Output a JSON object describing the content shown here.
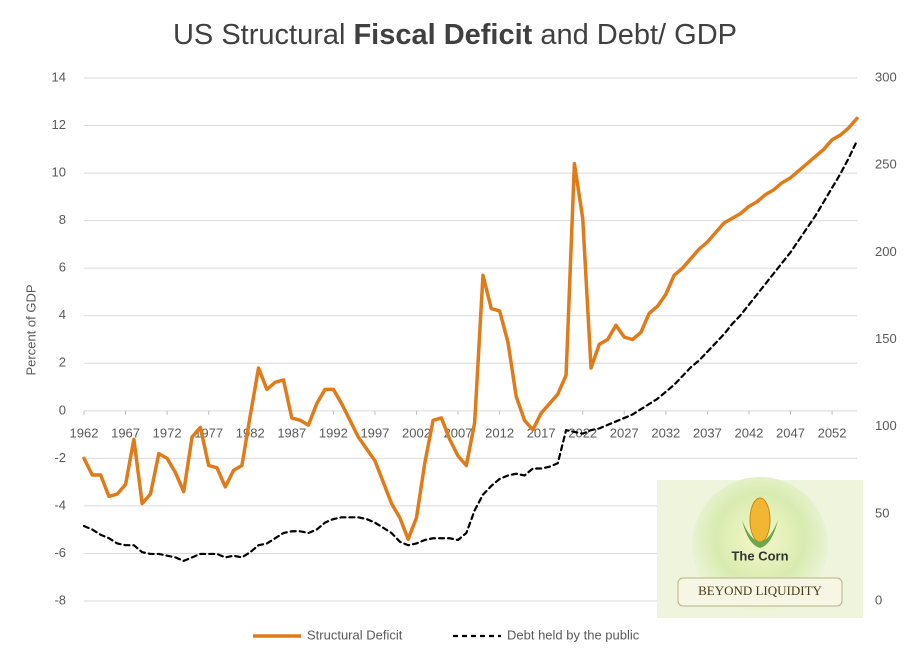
{
  "chart_data": {
    "type": "line",
    "title_parts": [
      "US Structural",
      "Fiscal Deficit",
      "and Debt/ GDP"
    ],
    "y_label": "Percent of GDP",
    "x": [
      1962,
      1963,
      1964,
      1965,
      1966,
      1967,
      1968,
      1969,
      1970,
      1971,
      1972,
      1973,
      1974,
      1975,
      1976,
      1977,
      1978,
      1979,
      1980,
      1981,
      1982,
      1983,
      1984,
      1985,
      1986,
      1987,
      1988,
      1989,
      1990,
      1991,
      1992,
      1993,
      1994,
      1995,
      1996,
      1997,
      1998,
      1999,
      2000,
      2001,
      2002,
      2003,
      2004,
      2005,
      2006,
      2007,
      2008,
      2009,
      2010,
      2011,
      2012,
      2013,
      2014,
      2015,
      2016,
      2017,
      2018,
      2019,
      2020,
      2021,
      2022,
      2023,
      2024,
      2025,
      2026,
      2027,
      2028,
      2029,
      2030,
      2031,
      2032,
      2033,
      2034,
      2035,
      2036,
      2037,
      2038,
      2039,
      2040,
      2041,
      2042,
      2043,
      2044,
      2045,
      2046,
      2047,
      2048,
      2049,
      2050,
      2051,
      2052,
      2053,
      2054,
      2055
    ],
    "xlim": [
      1962,
      2055
    ],
    "xticks": [
      1962,
      1967,
      1972,
      1977,
      1982,
      1987,
      1992,
      1997,
      2002,
      2007,
      2012,
      2017,
      2022,
      2027,
      2032,
      2037,
      2042,
      2047,
      2052
    ],
    "ylim": [
      -8,
      14
    ],
    "yticks": [
      -8,
      -6,
      -4,
      -2,
      0,
      2,
      4,
      6,
      8,
      10,
      12,
      14
    ],
    "y2lim": [
      0,
      300
    ],
    "y2ticks": [
      0,
      50,
      100,
      150,
      200,
      250,
      300
    ],
    "grid": true,
    "series": [
      {
        "name": "Structural Deficit",
        "color": "#e07b1a",
        "values": [
          -2.0,
          -2.7,
          -2.7,
          -3.6,
          -3.5,
          -3.1,
          -1.2,
          -3.9,
          -3.5,
          -1.8,
          -2.0,
          -2.6,
          -3.4,
          -1.1,
          -0.7,
          -2.3,
          -2.4,
          -3.2,
          -2.5,
          -2.3,
          -0.2,
          1.8,
          0.9,
          1.2,
          1.3,
          -0.3,
          -0.4,
          -0.6,
          0.3,
          0.9,
          0.9,
          0.3,
          -0.4,
          -1.1,
          -1.6,
          -2.1,
          -3.0,
          -3.9,
          -4.5,
          -5.4,
          -4.5,
          -2.2,
          -0.4,
          -0.3,
          -1.2,
          -1.9,
          -2.3,
          -0.5,
          5.7,
          4.3,
          4.2,
          2.9,
          0.6,
          -0.4,
          -0.8,
          -0.1,
          0.3,
          0.7,
          1.5,
          10.4,
          8.1,
          1.8,
          2.8,
          3.0,
          3.6,
          3.1,
          3.0,
          3.3,
          4.1,
          4.4,
          4.9,
          5.7,
          6.0,
          6.4,
          6.8,
          7.1,
          7.5,
          7.9,
          8.1,
          8.3,
          8.6,
          8.8,
          9.1,
          9.3,
          9.6,
          9.8,
          10.1,
          10.4,
          10.7,
          11.0,
          11.4,
          11.6,
          11.9,
          12.3
        ]
      },
      {
        "name": "Debt held by the public",
        "color": "#000000",
        "axis": "y2",
        "dashed": true,
        "values": [
          43,
          41,
          38,
          36,
          33,
          32,
          32,
          28,
          27,
          27,
          26,
          25,
          23,
          25,
          27,
          27,
          27,
          25,
          26,
          25,
          28,
          32,
          33,
          36,
          39,
          40,
          40,
          39,
          41,
          45,
          47,
          48,
          48,
          48,
          47,
          45,
          42,
          39,
          34,
          32,
          33,
          35,
          36,
          36,
          36,
          35,
          39,
          52,
          61,
          66,
          70,
          72,
          73,
          72,
          76,
          76,
          77,
          79,
          98,
          97,
          96,
          98,
          99,
          101,
          103,
          105,
          107,
          110,
          113,
          116,
          120,
          124,
          129,
          134,
          138,
          143,
          148,
          153,
          159,
          164,
          170,
          176,
          182,
          188,
          194,
          200,
          207,
          214,
          221,
          229,
          237,
          245,
          254,
          264
        ]
      }
    ]
  },
  "watermark": {
    "name": "The Corn",
    "tagline": "BEYOND LIQUIDITY"
  }
}
